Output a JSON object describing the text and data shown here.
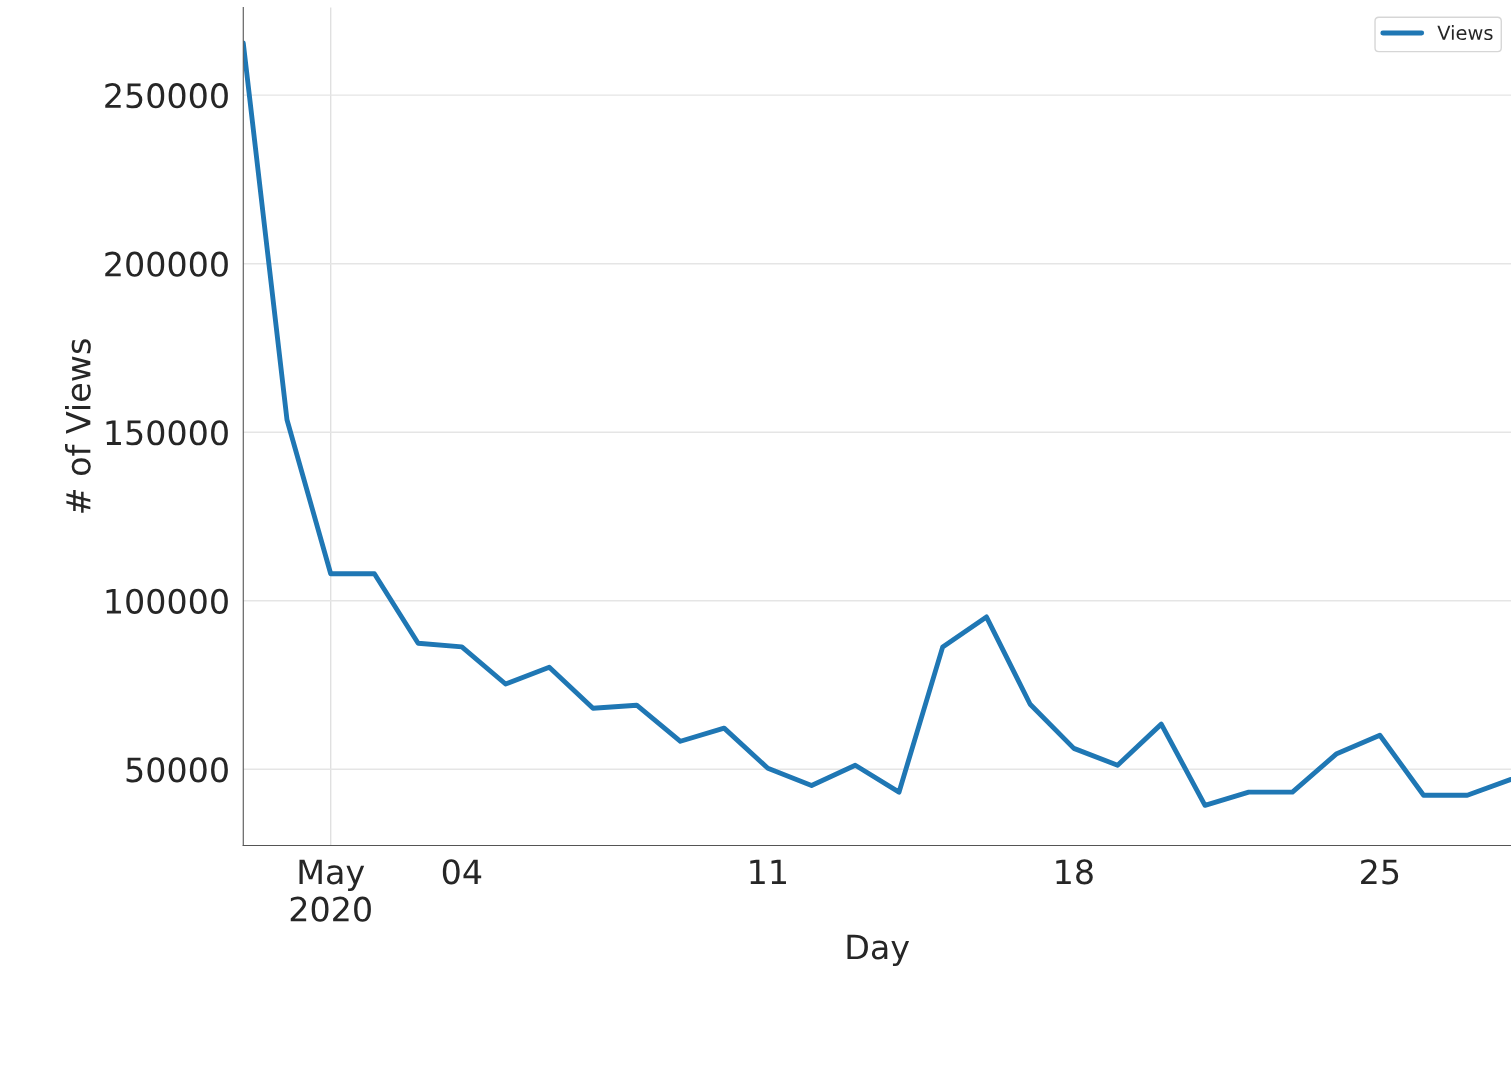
{
  "chart_data": {
    "type": "line",
    "xlabel": "Day",
    "ylabel": "# of Views",
    "x": [
      "2020-04-29",
      "2020-04-30",
      "2020-05-01",
      "2020-05-02",
      "2020-05-03",
      "2020-05-04",
      "2020-05-05",
      "2020-05-06",
      "2020-05-07",
      "2020-05-08",
      "2020-05-09",
      "2020-05-10",
      "2020-05-11",
      "2020-05-12",
      "2020-05-13",
      "2020-05-14",
      "2020-05-15",
      "2020-05-16",
      "2020-05-17",
      "2020-05-18",
      "2020-05-19",
      "2020-05-20",
      "2020-05-21",
      "2020-05-22",
      "2020-05-23",
      "2020-05-24",
      "2020-05-25",
      "2020-05-26",
      "2020-05-27",
      "2020-05-28"
    ],
    "series": [
      {
        "name": "Views",
        "color": "#1f77b4",
        "values": [
          265500,
          153700,
          108000,
          108000,
          87400,
          86300,
          75300,
          80300,
          68100,
          69000,
          58300,
          62200,
          50300,
          45200,
          51200,
          43200,
          86300,
          95200,
          69300,
          56200,
          51200,
          63400,
          39300,
          43200,
          43200,
          54500,
          60100,
          42300,
          42300,
          47000
        ]
      }
    ],
    "xlim": [
      "2020-04-29",
      "2020-05-28"
    ],
    "xticks": [
      {
        "value": "2020-05-01",
        "label": "May\n2020"
      },
      {
        "value": "2020-05-04",
        "label": "04"
      },
      {
        "value": "2020-05-11",
        "label": "11"
      },
      {
        "value": "2020-05-18",
        "label": "18"
      },
      {
        "value": "2020-05-25",
        "label": "25"
      }
    ],
    "ylim": [
      27400,
      276000
    ],
    "yticks": [
      50000,
      100000,
      150000,
      200000,
      250000
    ],
    "ref_lines": [
      {
        "axis": "x",
        "value": "2020-05-01",
        "color": "#e0e0e0"
      }
    ],
    "grid": "y",
    "legend": "top right",
    "marker": "none",
    "line_style": "solid"
  }
}
